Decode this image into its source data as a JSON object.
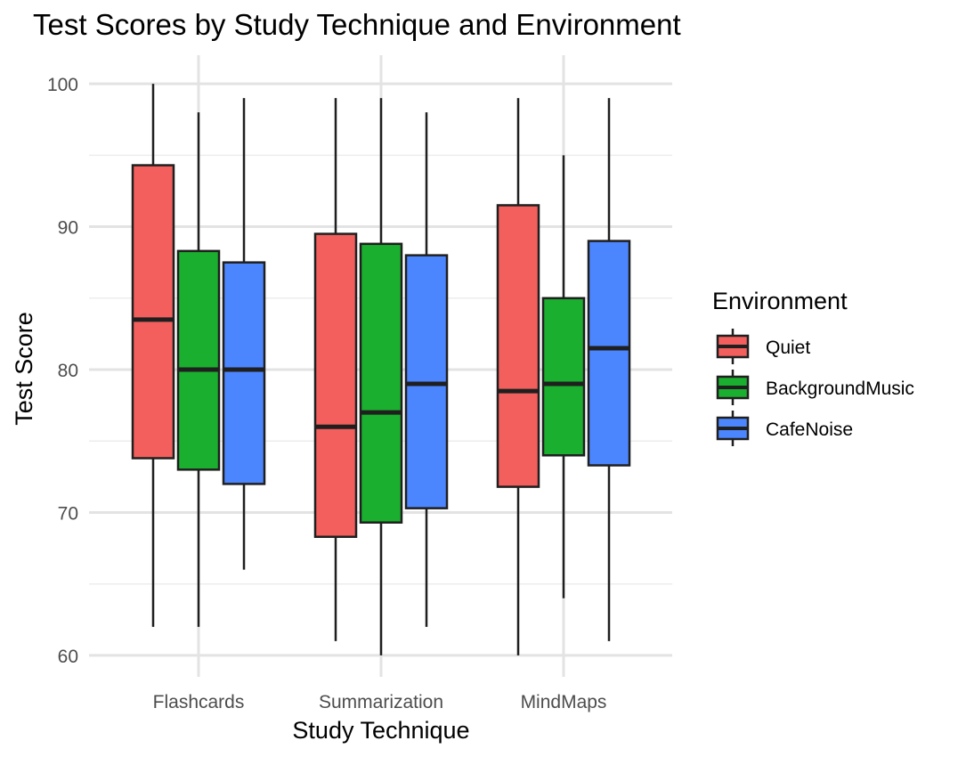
{
  "chart_data": {
    "type": "boxplot",
    "title": "Test Scores by Study Technique and Environment",
    "xlabel": "Study Technique",
    "ylabel": "Test Score",
    "categories": [
      "Flashcards",
      "Summarization",
      "MindMaps"
    ],
    "ylim": [
      58.5,
      102
    ],
    "yticks": [
      60,
      70,
      80,
      90,
      100
    ],
    "grid": true,
    "legend": {
      "title": "Environment",
      "position": "right"
    },
    "series": [
      {
        "name": "Quiet",
        "color": "#F25F5C",
        "boxes": [
          {
            "min": 62,
            "q1": 73.8,
            "median": 83.5,
            "q3": 94.3,
            "max": 100
          },
          {
            "min": 61,
            "q1": 68.3,
            "median": 76,
            "q3": 89.5,
            "max": 99
          },
          {
            "min": 60,
            "q1": 71.8,
            "median": 78.5,
            "q3": 91.5,
            "max": 99
          }
        ]
      },
      {
        "name": "BackgroundMusic",
        "color": "#1AAF2E",
        "boxes": [
          {
            "min": 62,
            "q1": 73,
            "median": 80,
            "q3": 88.3,
            "max": 98
          },
          {
            "min": 60,
            "q1": 69.3,
            "median": 77,
            "q3": 88.8,
            "max": 99
          },
          {
            "min": 64,
            "q1": 74,
            "median": 79,
            "q3": 85,
            "max": 95
          }
        ]
      },
      {
        "name": "CafeNoise",
        "color": "#4C86FF",
        "boxes": [
          {
            "min": 66,
            "q1": 72,
            "median": 80,
            "q3": 87.5,
            "max": 99
          },
          {
            "min": 62,
            "q1": 70.3,
            "median": 79,
            "q3": 88,
            "max": 98
          },
          {
            "min": 61,
            "q1": 73.3,
            "median": 81.5,
            "q3": 89,
            "max": 99
          }
        ]
      }
    ]
  }
}
